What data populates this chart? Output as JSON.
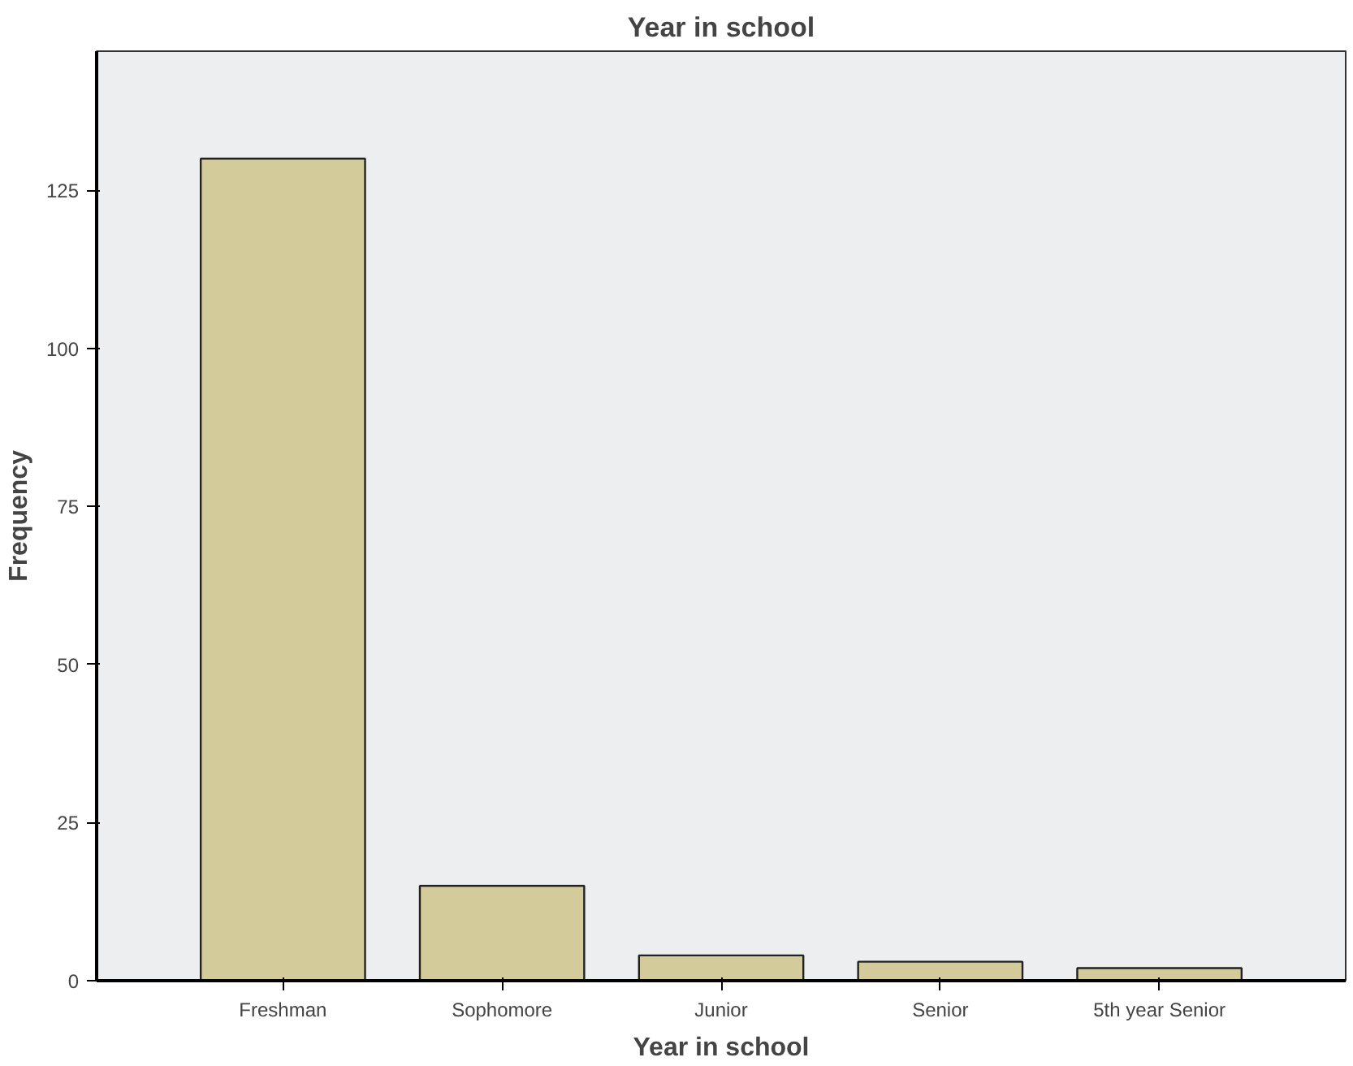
{
  "chart_data": {
    "type": "bar",
    "title": "Year in school",
    "xlabel": "Year in school",
    "ylabel": "Frequency",
    "categories": [
      "Freshman",
      "Sophomore",
      "Junior",
      "Senior",
      "5th year Senior"
    ],
    "values": [
      130,
      15,
      4,
      3,
      2
    ],
    "color": "#d3cc9a",
    "ylim": [
      0,
      147
    ],
    "yticks": [
      0,
      25,
      50,
      75,
      100,
      125
    ],
    "grid": false
  }
}
